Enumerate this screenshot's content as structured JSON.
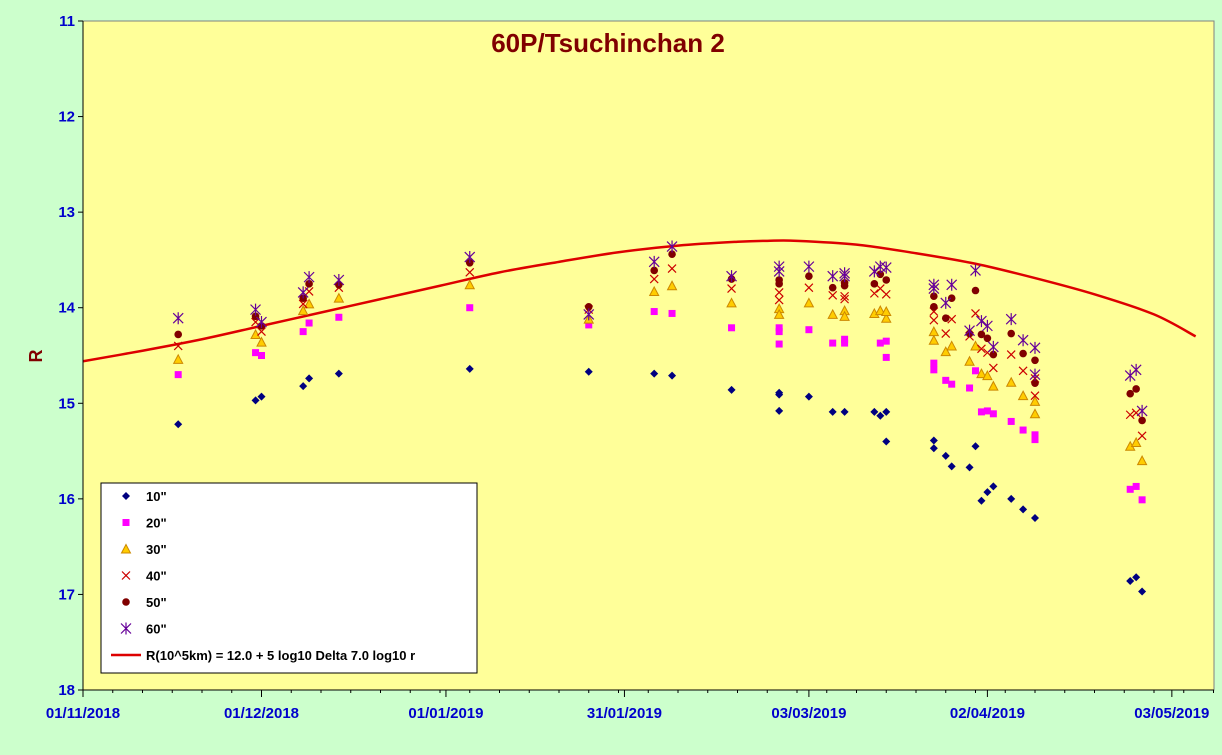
{
  "chart_data": {
    "type": "scatter",
    "title": "60P/Tsuchinchan 2",
    "ylabel": "R",
    "xlabel": "",
    "x_axis": {
      "type": "date",
      "range": [
        "2018-11-01",
        "2019-05-03"
      ],
      "tick_labels": [
        "01/11/2018",
        "01/12/2018",
        "01/01/2019",
        "31/01/2019",
        "03/03/2019",
        "02/04/2019",
        "03/05/2019"
      ],
      "tick_dates": [
        "2018-11-01",
        "2018-12-01",
        "2019-01-01",
        "2019-01-31",
        "2019-03-03",
        "2019-04-02",
        "2019-05-03"
      ]
    },
    "y_axis": {
      "range": [
        11,
        18
      ],
      "inverted": true,
      "tick_labels": [
        "11",
        "12",
        "13",
        "14",
        "15",
        "16",
        "17",
        "18"
      ],
      "ticks": [
        11,
        12,
        13,
        14,
        15,
        16,
        17,
        18
      ]
    },
    "grid": false,
    "legend_position": "bottom-left",
    "colors": {
      "background": "#ccffcc",
      "plot_area": "#ffff99",
      "model_line": "#dd0000",
      "series_10": "#000080",
      "series_20": "#ff00ff",
      "series_30": "#cc8800",
      "series_40": "#cc0000",
      "series_50": "#800000",
      "series_60": "#660099"
    },
    "series": [
      {
        "name": "10\"",
        "marker": "diamond",
        "points": [
          [
            "2018-11-17",
            15.22
          ],
          [
            "2018-11-30",
            14.97
          ],
          [
            "2018-12-01",
            14.93
          ],
          [
            "2018-12-08",
            14.82
          ],
          [
            "2018-12-09",
            14.74
          ],
          [
            "2018-12-14",
            14.69
          ],
          [
            "2019-01-05",
            14.64
          ],
          [
            "2019-01-25",
            14.67
          ],
          [
            "2019-02-05",
            14.69
          ],
          [
            "2019-02-08",
            14.71
          ],
          [
            "2019-02-18",
            14.86
          ],
          [
            "2019-02-26",
            14.89
          ],
          [
            "2019-02-26",
            14.91
          ],
          [
            "2019-02-26",
            15.08
          ],
          [
            "2019-03-03",
            14.93
          ],
          [
            "2019-03-07",
            15.09
          ],
          [
            "2019-03-09",
            15.09
          ],
          [
            "2019-03-14",
            15.09
          ],
          [
            "2019-03-15",
            15.13
          ],
          [
            "2019-03-16",
            15.09
          ],
          [
            "2019-03-16",
            15.4
          ],
          [
            "2019-03-24",
            15.39
          ],
          [
            "2019-03-24",
            15.47
          ],
          [
            "2019-03-26",
            15.55
          ],
          [
            "2019-03-27",
            15.66
          ],
          [
            "2019-03-30",
            15.67
          ],
          [
            "2019-03-31",
            15.45
          ],
          [
            "2019-04-01",
            16.02
          ],
          [
            "2019-04-02",
            15.93
          ],
          [
            "2019-04-03",
            15.87
          ],
          [
            "2019-04-06",
            16.0
          ],
          [
            "2019-04-08",
            16.11
          ],
          [
            "2019-04-10",
            16.2
          ],
          [
            "2019-04-26",
            16.86
          ],
          [
            "2019-04-27",
            16.82
          ],
          [
            "2019-04-28",
            16.97
          ]
        ]
      },
      {
        "name": "20\"",
        "marker": "square",
        "points": [
          [
            "2018-11-17",
            14.7
          ],
          [
            "2018-11-30",
            14.47
          ],
          [
            "2018-12-01",
            14.5
          ],
          [
            "2018-12-08",
            14.25
          ],
          [
            "2018-12-09",
            14.16
          ],
          [
            "2018-12-14",
            14.1
          ],
          [
            "2019-01-05",
            14.0
          ],
          [
            "2019-01-25",
            14.18
          ],
          [
            "2019-02-05",
            14.04
          ],
          [
            "2019-02-08",
            14.06
          ],
          [
            "2019-02-18",
            14.21
          ],
          [
            "2019-02-26",
            14.21
          ],
          [
            "2019-02-26",
            14.25
          ],
          [
            "2019-02-26",
            14.38
          ],
          [
            "2019-03-03",
            14.23
          ],
          [
            "2019-03-07",
            14.37
          ],
          [
            "2019-03-09",
            14.33
          ],
          [
            "2019-03-09",
            14.37
          ],
          [
            "2019-03-15",
            14.37
          ],
          [
            "2019-03-16",
            14.52
          ],
          [
            "2019-03-16",
            14.35
          ],
          [
            "2019-03-24",
            14.65
          ],
          [
            "2019-03-24",
            14.58
          ],
          [
            "2019-03-26",
            14.76
          ],
          [
            "2019-03-27",
            14.8
          ],
          [
            "2019-03-30",
            14.84
          ],
          [
            "2019-03-31",
            14.66
          ],
          [
            "2019-04-01",
            15.09
          ],
          [
            "2019-04-02",
            15.08
          ],
          [
            "2019-04-03",
            15.11
          ],
          [
            "2019-04-06",
            15.19
          ],
          [
            "2019-04-08",
            15.28
          ],
          [
            "2019-04-10",
            15.38
          ],
          [
            "2019-04-10",
            15.33
          ],
          [
            "2019-04-26",
            15.9
          ],
          [
            "2019-04-27",
            15.87
          ],
          [
            "2019-04-28",
            16.01
          ]
        ]
      },
      {
        "name": "30\"",
        "marker": "triangle",
        "points": [
          [
            "2018-11-17",
            14.54
          ],
          [
            "2018-11-30",
            14.28
          ],
          [
            "2018-12-01",
            14.36
          ],
          [
            "2018-12-08",
            14.03
          ],
          [
            "2018-12-09",
            13.96
          ],
          [
            "2018-12-14",
            13.9
          ],
          [
            "2019-01-05",
            13.76
          ],
          [
            "2019-01-25",
            14.12
          ],
          [
            "2019-02-05",
            13.83
          ],
          [
            "2019-02-08",
            13.77
          ],
          [
            "2019-02-18",
            13.95
          ],
          [
            "2019-02-26",
            14.01
          ],
          [
            "2019-02-26",
            14.07
          ],
          [
            "2019-03-03",
            13.95
          ],
          [
            "2019-03-07",
            14.07
          ],
          [
            "2019-03-09",
            14.03
          ],
          [
            "2019-03-09",
            14.09
          ],
          [
            "2019-03-14",
            14.06
          ],
          [
            "2019-03-15",
            14.03
          ],
          [
            "2019-03-16",
            14.11
          ],
          [
            "2019-03-16",
            14.04
          ],
          [
            "2019-03-24",
            14.34
          ],
          [
            "2019-03-24",
            14.25
          ],
          [
            "2019-03-26",
            14.46
          ],
          [
            "2019-03-27",
            14.4
          ],
          [
            "2019-03-30",
            14.56
          ],
          [
            "2019-03-31",
            14.4
          ],
          [
            "2019-04-01",
            14.69
          ],
          [
            "2019-04-02",
            14.71
          ],
          [
            "2019-04-03",
            14.82
          ],
          [
            "2019-04-06",
            14.78
          ],
          [
            "2019-04-08",
            14.92
          ],
          [
            "2019-04-10",
            14.98
          ],
          [
            "2019-04-10",
            15.11
          ],
          [
            "2019-04-26",
            15.45
          ],
          [
            "2019-04-27",
            15.41
          ],
          [
            "2019-04-28",
            15.6
          ]
        ]
      },
      {
        "name": "40\"",
        "marker": "x",
        "points": [
          [
            "2018-11-17",
            14.4
          ],
          [
            "2018-11-30",
            14.15
          ],
          [
            "2018-12-01",
            14.25
          ],
          [
            "2018-12-08",
            13.96
          ],
          [
            "2018-12-09",
            13.83
          ],
          [
            "2018-12-14",
            13.79
          ],
          [
            "2019-01-05",
            13.63
          ],
          [
            "2019-01-25",
            14.02
          ],
          [
            "2019-02-05",
            13.7
          ],
          [
            "2019-02-08",
            13.59
          ],
          [
            "2019-02-18",
            13.8
          ],
          [
            "2019-02-26",
            13.84
          ],
          [
            "2019-02-26",
            13.92
          ],
          [
            "2019-03-03",
            13.79
          ],
          [
            "2019-03-07",
            13.87
          ],
          [
            "2019-03-09",
            13.88
          ],
          [
            "2019-03-09",
            13.91
          ],
          [
            "2019-03-14",
            13.85
          ],
          [
            "2019-03-15",
            13.8
          ],
          [
            "2019-03-16",
            13.86
          ],
          [
            "2019-03-24",
            14.13
          ],
          [
            "2019-03-24",
            14.04
          ],
          [
            "2019-03-26",
            14.27
          ],
          [
            "2019-03-27",
            14.12
          ],
          [
            "2019-03-30",
            14.3
          ],
          [
            "2019-03-31",
            14.06
          ],
          [
            "2019-04-01",
            14.43
          ],
          [
            "2019-04-02",
            14.47
          ],
          [
            "2019-04-03",
            14.63
          ],
          [
            "2019-04-06",
            14.49
          ],
          [
            "2019-04-08",
            14.66
          ],
          [
            "2019-04-10",
            14.74
          ],
          [
            "2019-04-10",
            14.92
          ],
          [
            "2019-04-26",
            15.12
          ],
          [
            "2019-04-27",
            15.1
          ],
          [
            "2019-04-28",
            15.34
          ]
        ]
      },
      {
        "name": "50\"",
        "marker": "circle",
        "points": [
          [
            "2018-11-17",
            14.28
          ],
          [
            "2018-11-30",
            14.09
          ],
          [
            "2018-12-01",
            14.19
          ],
          [
            "2018-12-08",
            13.9
          ],
          [
            "2018-12-09",
            13.75
          ],
          [
            "2018-12-14",
            13.76
          ],
          [
            "2019-01-05",
            13.53
          ],
          [
            "2019-01-25",
            13.99
          ],
          [
            "2019-02-05",
            13.61
          ],
          [
            "2019-02-08",
            13.44
          ],
          [
            "2019-02-18",
            13.7
          ],
          [
            "2019-02-26",
            13.71
          ],
          [
            "2019-02-26",
            13.75
          ],
          [
            "2019-03-03",
            13.67
          ],
          [
            "2019-03-07",
            13.79
          ],
          [
            "2019-03-09",
            13.77
          ],
          [
            "2019-03-09",
            13.74
          ],
          [
            "2019-03-14",
            13.75
          ],
          [
            "2019-03-15",
            13.65
          ],
          [
            "2019-03-16",
            13.71
          ],
          [
            "2019-03-24",
            13.99
          ],
          [
            "2019-03-24",
            13.88
          ],
          [
            "2019-03-26",
            14.11
          ],
          [
            "2019-03-27",
            13.9
          ],
          [
            "2019-03-30",
            14.27
          ],
          [
            "2019-03-31",
            13.82
          ],
          [
            "2019-04-01",
            14.28
          ],
          [
            "2019-04-02",
            14.32
          ],
          [
            "2019-04-03",
            14.49
          ],
          [
            "2019-04-06",
            14.27
          ],
          [
            "2019-04-08",
            14.48
          ],
          [
            "2019-04-10",
            14.55
          ],
          [
            "2019-04-10",
            14.79
          ],
          [
            "2019-04-26",
            14.9
          ],
          [
            "2019-04-27",
            14.85
          ],
          [
            "2019-04-28",
            15.18
          ]
        ]
      },
      {
        "name": "60\"",
        "marker": "asterisk",
        "points": [
          [
            "2018-11-17",
            14.11
          ],
          [
            "2018-11-30",
            14.02
          ],
          [
            "2018-12-01",
            14.15
          ],
          [
            "2018-12-08",
            13.84
          ],
          [
            "2018-12-09",
            13.68
          ],
          [
            "2018-12-14",
            13.71
          ],
          [
            "2019-01-05",
            13.47
          ],
          [
            "2019-01-25",
            14.07
          ],
          [
            "2019-02-05",
            13.52
          ],
          [
            "2019-02-08",
            13.36
          ],
          [
            "2019-02-18",
            13.67
          ],
          [
            "2019-02-26",
            13.57
          ],
          [
            "2019-02-26",
            13.62
          ],
          [
            "2019-03-03",
            13.57
          ],
          [
            "2019-03-07",
            13.67
          ],
          [
            "2019-03-09",
            13.64
          ],
          [
            "2019-03-09",
            13.67
          ],
          [
            "2019-03-14",
            13.62
          ],
          [
            "2019-03-15",
            13.57
          ],
          [
            "2019-03-16",
            13.58
          ],
          [
            "2019-03-24",
            13.8
          ],
          [
            "2019-03-24",
            13.76
          ],
          [
            "2019-03-26",
            13.95
          ],
          [
            "2019-03-27",
            13.76
          ],
          [
            "2019-03-30",
            14.24
          ],
          [
            "2019-03-31",
            13.61
          ],
          [
            "2019-04-01",
            14.14
          ],
          [
            "2019-04-02",
            14.19
          ],
          [
            "2019-04-03",
            14.41
          ],
          [
            "2019-04-06",
            14.12
          ],
          [
            "2019-04-08",
            14.34
          ],
          [
            "2019-04-10",
            14.42
          ],
          [
            "2019-04-10",
            14.7
          ],
          [
            "2019-04-26",
            14.71
          ],
          [
            "2019-04-27",
            14.65
          ],
          [
            "2019-04-28",
            15.08
          ]
        ]
      }
    ],
    "model_line": {
      "name": "R(10^5km) = 12.0 + 5 log10 Delta 7.0 log10 r",
      "points": [
        [
          "2018-11-01",
          14.56
        ],
        [
          "2018-11-11",
          14.45
        ],
        [
          "2018-11-21",
          14.33
        ],
        [
          "2018-12-01",
          14.19
        ],
        [
          "2018-12-11",
          14.05
        ],
        [
          "2018-12-21",
          13.91
        ],
        [
          "2018-12-31",
          13.77
        ],
        [
          "2019-01-10",
          13.63
        ],
        [
          "2019-01-20",
          13.52
        ],
        [
          "2019-01-30",
          13.42
        ],
        [
          "2019-02-09",
          13.35
        ],
        [
          "2019-02-19",
          13.31
        ],
        [
          "2019-02-24",
          13.3
        ],
        [
          "2019-03-01",
          13.3
        ],
        [
          "2019-03-11",
          13.34
        ],
        [
          "2019-03-21",
          13.43
        ],
        [
          "2019-03-31",
          13.54
        ],
        [
          "2019-04-10",
          13.69
        ],
        [
          "2019-04-20",
          13.86
        ],
        [
          "2019-04-30",
          14.07
        ],
        [
          "2019-05-07",
          14.3
        ]
      ]
    }
  }
}
